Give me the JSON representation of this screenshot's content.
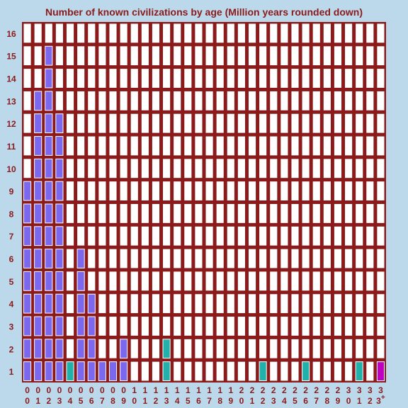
{
  "chart_data": {
    "type": "bar",
    "title": "Number of known civilizations by age (Million years rounded down)",
    "xlabel": "",
    "ylabel": "",
    "grid": true,
    "ylim": [
      0,
      16
    ],
    "yticks": [
      "1",
      "2",
      "3",
      "4",
      "5",
      "6",
      "7",
      "8",
      "9",
      "10",
      "11",
      "12",
      "13",
      "14",
      "15",
      "16"
    ],
    "categories": [
      "00",
      "01",
      "02",
      "03",
      "04",
      "05",
      "06",
      "07",
      "08",
      "09",
      "10",
      "11",
      "12",
      "13",
      "14",
      "15",
      "16",
      "17",
      "18",
      "19",
      "20",
      "21",
      "22",
      "23",
      "24",
      "25",
      "26",
      "27",
      "28",
      "29",
      "30",
      "31",
      "32",
      "33+"
    ],
    "tick_labels": [
      [
        "0",
        "0"
      ],
      [
        "0",
        "1"
      ],
      [
        "0",
        "2"
      ],
      [
        "0",
        "3"
      ],
      [
        "0",
        "4"
      ],
      [
        "0",
        "5"
      ],
      [
        "0",
        "6"
      ],
      [
        "0",
        "7"
      ],
      [
        "0",
        "8"
      ],
      [
        "0",
        "9"
      ],
      [
        "1",
        "0"
      ],
      [
        "1",
        "1"
      ],
      [
        "1",
        "2"
      ],
      [
        "1",
        "3"
      ],
      [
        "1",
        "4"
      ],
      [
        "1",
        "5"
      ],
      [
        "1",
        "6"
      ],
      [
        "1",
        "7"
      ],
      [
        "1",
        "8"
      ],
      [
        "1",
        "9"
      ],
      [
        "2",
        "0"
      ],
      [
        "2",
        "1"
      ],
      [
        "2",
        "2"
      ],
      [
        "2",
        "3"
      ],
      [
        "2",
        "4"
      ],
      [
        "2",
        "5"
      ],
      [
        "2",
        "6"
      ],
      [
        "2",
        "7"
      ],
      [
        "2",
        "8"
      ],
      [
        "2",
        "9"
      ],
      [
        "3",
        "0"
      ],
      [
        "3",
        "1"
      ],
      [
        "3",
        "2"
      ],
      [
        "3",
        "3+"
      ]
    ],
    "values": [
      9,
      13,
      15,
      12,
      1,
      6,
      4,
      1,
      1,
      2,
      0,
      0,
      0,
      2,
      0,
      0,
      0,
      0,
      0,
      0,
      0,
      0,
      1,
      0,
      0,
      0,
      1,
      0,
      0,
      0,
      0,
      1,
      0,
      1
    ],
    "bar_colors": [
      "#7b68ee",
      "#7b68ee",
      "#7b68ee",
      "#7b68ee",
      "#20b2aa",
      "#7b68ee",
      "#7b68ee",
      "#7b68ee",
      "#7b68ee",
      "#7b68ee",
      "#7b68ee",
      "#7b68ee",
      "#7b68ee",
      "#20b2aa",
      "#7b68ee",
      "#7b68ee",
      "#7b68ee",
      "#7b68ee",
      "#7b68ee",
      "#7b68ee",
      "#7b68ee",
      "#7b68ee",
      "#20b2aa",
      "#7b68ee",
      "#7b68ee",
      "#7b68ee",
      "#20b2aa",
      "#7b68ee",
      "#7b68ee",
      "#7b68ee",
      "#7b68ee",
      "#20b2aa",
      "#7b68ee",
      "#c000c0"
    ],
    "colors": {
      "background": "#bcd9ec",
      "cell_fill": "#ffffff",
      "grid_line": "#8b1a1a",
      "text": "#8b1a1a",
      "cell_border_filled": "#ffffff"
    }
  }
}
